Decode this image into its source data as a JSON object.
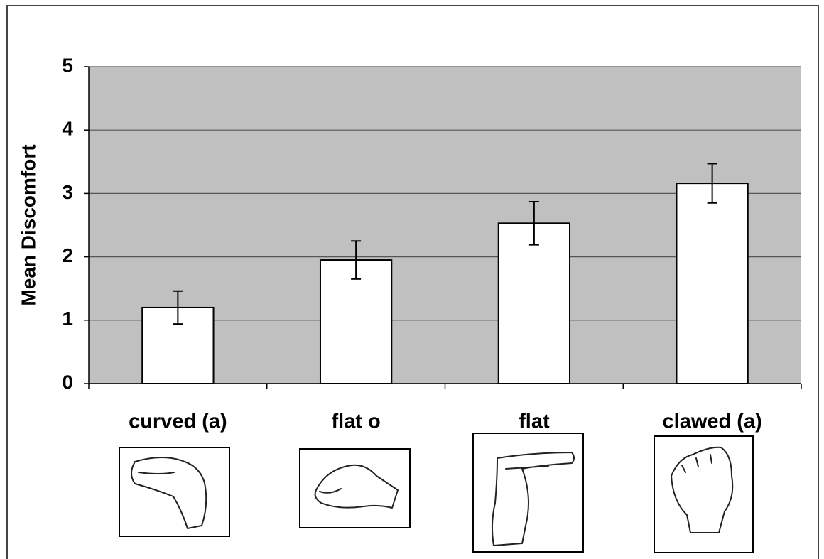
{
  "chart_data": {
    "type": "bar",
    "y_label": "Mean Discomfort",
    "categories": [
      "curved (a)",
      "flat o",
      "flat",
      "clawed (a)"
    ],
    "values": [
      1.2,
      1.95,
      2.53,
      3.16
    ],
    "errors": [
      0.26,
      0.3,
      0.34,
      0.31
    ],
    "color": "#ffffff",
    "background": "#c0c0c0",
    "ylim": [
      0,
      5
    ],
    "yticks": [
      0,
      1,
      2,
      3,
      4,
      5
    ],
    "grid": true
  }
}
